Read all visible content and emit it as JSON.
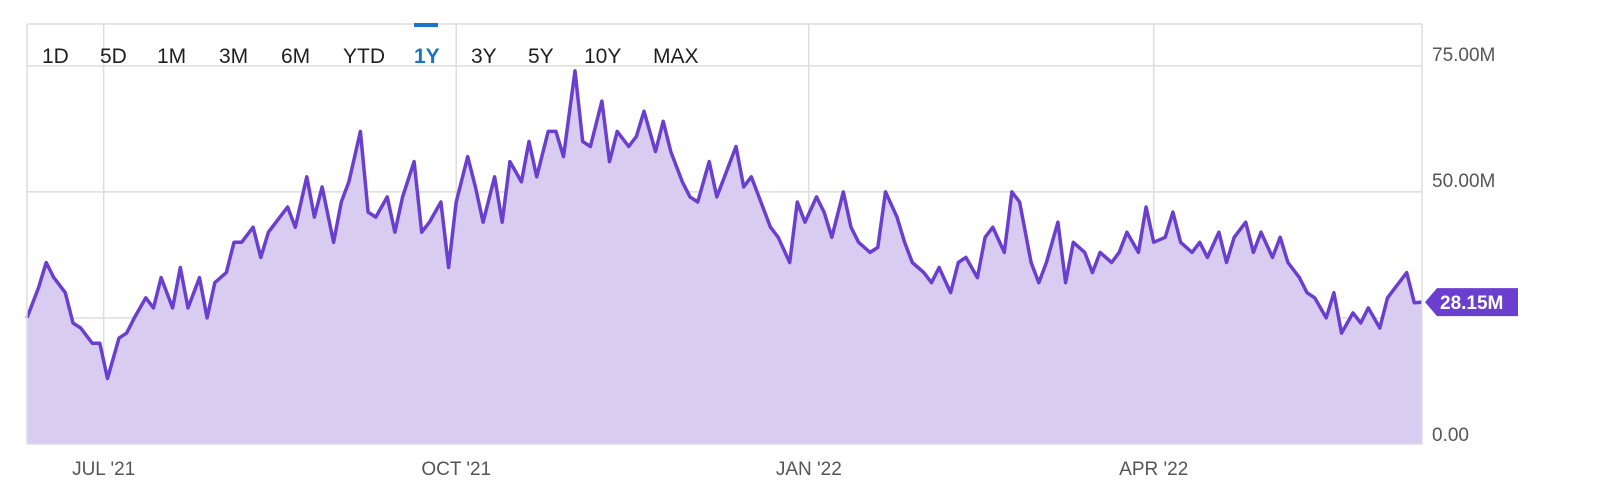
{
  "range_selector": {
    "options": [
      "1D",
      "5D",
      "1M",
      "3M",
      "6M",
      "YTD",
      "1Y",
      "3Y",
      "5Y",
      "10Y",
      "MAX"
    ],
    "selected": "1Y"
  },
  "colors": {
    "line": "#6a3fd0",
    "fill": "#d8cdf1",
    "grid": "#dddddd",
    "active": "#1a73c4",
    "badge": "#6a3fd0"
  },
  "last_value_label": "28.15M",
  "chart_data": {
    "type": "area",
    "title": "",
    "xlabel": "",
    "ylabel": "",
    "ylim": [
      0,
      100000000
    ],
    "y_ticks": [
      0,
      25000000,
      50000000,
      75000000
    ],
    "y_tick_labels": [
      "0.00",
      "",
      "50.00M",
      "75.00M"
    ],
    "x_ticks": [
      "2021-07-01",
      "2021-10-01",
      "2022-01-01",
      "2022-04-01"
    ],
    "x_tick_labels": [
      "JUL '21",
      "OCT '21",
      "JAN '22",
      "APR '22"
    ],
    "x_range": [
      "2021-06-11",
      "2022-06-10"
    ],
    "grid": true,
    "series": [
      {
        "name": "",
        "points": [
          [
            "2021-06-11",
            25
          ],
          [
            "2021-06-14",
            31
          ],
          [
            "2021-06-16",
            36
          ],
          [
            "2021-06-18",
            33
          ],
          [
            "2021-06-21",
            30
          ],
          [
            "2021-06-23",
            24
          ],
          [
            "2021-06-25",
            23
          ],
          [
            "2021-06-28",
            20
          ],
          [
            "2021-06-30",
            20
          ],
          [
            "2021-07-02",
            13
          ],
          [
            "2021-07-05",
            21
          ],
          [
            "2021-07-07",
            22
          ],
          [
            "2021-07-09",
            25
          ],
          [
            "2021-07-12",
            29
          ],
          [
            "2021-07-14",
            27
          ],
          [
            "2021-07-16",
            33
          ],
          [
            "2021-07-19",
            27
          ],
          [
            "2021-07-21",
            35
          ],
          [
            "2021-07-23",
            27
          ],
          [
            "2021-07-26",
            33
          ],
          [
            "2021-07-28",
            25
          ],
          [
            "2021-07-30",
            32
          ],
          [
            "2021-08-02",
            34
          ],
          [
            "2021-08-04",
            40
          ],
          [
            "2021-08-06",
            40
          ],
          [
            "2021-08-09",
            43
          ],
          [
            "2021-08-11",
            37
          ],
          [
            "2021-08-13",
            42
          ],
          [
            "2021-08-16",
            45
          ],
          [
            "2021-08-18",
            47
          ],
          [
            "2021-08-20",
            43
          ],
          [
            "2021-08-23",
            53
          ],
          [
            "2021-08-25",
            45
          ],
          [
            "2021-08-27",
            51
          ],
          [
            "2021-08-30",
            40
          ],
          [
            "2021-09-01",
            48
          ],
          [
            "2021-09-03",
            52
          ],
          [
            "2021-09-06",
            62
          ],
          [
            "2021-09-08",
            46
          ],
          [
            "2021-09-10",
            45
          ],
          [
            "2021-09-13",
            49
          ],
          [
            "2021-09-15",
            42
          ],
          [
            "2021-09-17",
            49
          ],
          [
            "2021-09-20",
            56
          ],
          [
            "2021-09-22",
            42
          ],
          [
            "2021-09-24",
            44
          ],
          [
            "2021-09-27",
            48
          ],
          [
            "2021-09-29",
            35
          ],
          [
            "2021-10-01",
            48
          ],
          [
            "2021-10-04",
            57
          ],
          [
            "2021-10-06",
            51
          ],
          [
            "2021-10-08",
            44
          ],
          [
            "2021-10-11",
            53
          ],
          [
            "2021-10-13",
            44
          ],
          [
            "2021-10-15",
            56
          ],
          [
            "2021-10-18",
            52
          ],
          [
            "2021-10-20",
            60
          ],
          [
            "2021-10-22",
            53
          ],
          [
            "2021-10-25",
            62
          ],
          [
            "2021-10-27",
            62
          ],
          [
            "2021-10-29",
            57
          ],
          [
            "2021-11-01",
            74
          ],
          [
            "2021-11-03",
            60
          ],
          [
            "2021-11-05",
            59
          ],
          [
            "2021-11-08",
            68
          ],
          [
            "2021-11-10",
            56
          ],
          [
            "2021-11-12",
            62
          ],
          [
            "2021-11-15",
            59
          ],
          [
            "2021-11-17",
            61
          ],
          [
            "2021-11-19",
            66
          ],
          [
            "2021-11-22",
            58
          ],
          [
            "2021-11-24",
            64
          ],
          [
            "2021-11-26",
            58
          ],
          [
            "2021-11-29",
            52
          ],
          [
            "2021-12-01",
            49
          ],
          [
            "2021-12-03",
            48
          ],
          [
            "2021-12-06",
            56
          ],
          [
            "2021-12-08",
            49
          ],
          [
            "2021-12-10",
            53
          ],
          [
            "2021-12-13",
            59
          ],
          [
            "2021-12-15",
            51
          ],
          [
            "2021-12-17",
            53
          ],
          [
            "2021-12-20",
            47
          ],
          [
            "2021-12-22",
            43
          ],
          [
            "2021-12-24",
            41
          ],
          [
            "2021-12-27",
            36
          ],
          [
            "2021-12-29",
            48
          ],
          [
            "2021-12-31",
            44
          ],
          [
            "2022-01-03",
            49
          ],
          [
            "2022-01-05",
            46
          ],
          [
            "2022-01-07",
            41
          ],
          [
            "2022-01-10",
            50
          ],
          [
            "2022-01-12",
            43
          ],
          [
            "2022-01-14",
            40
          ],
          [
            "2022-01-17",
            38
          ],
          [
            "2022-01-19",
            39
          ],
          [
            "2022-01-21",
            50
          ],
          [
            "2022-01-24",
            45
          ],
          [
            "2022-01-26",
            40
          ],
          [
            "2022-01-28",
            36
          ],
          [
            "2022-01-31",
            34
          ],
          [
            "2022-02-02",
            32
          ],
          [
            "2022-02-04",
            35
          ],
          [
            "2022-02-07",
            30
          ],
          [
            "2022-02-09",
            36
          ],
          [
            "2022-02-11",
            37
          ],
          [
            "2022-02-14",
            33
          ],
          [
            "2022-02-16",
            41
          ],
          [
            "2022-02-18",
            43
          ],
          [
            "2022-02-21",
            38
          ],
          [
            "2022-02-23",
            50
          ],
          [
            "2022-02-25",
            48
          ],
          [
            "2022-02-28",
            36
          ],
          [
            "2022-03-02",
            32
          ],
          [
            "2022-03-04",
            36
          ],
          [
            "2022-03-07",
            44
          ],
          [
            "2022-03-09",
            32
          ],
          [
            "2022-03-11",
            40
          ],
          [
            "2022-03-14",
            38
          ],
          [
            "2022-03-16",
            34
          ],
          [
            "2022-03-18",
            38
          ],
          [
            "2022-03-21",
            36
          ],
          [
            "2022-03-23",
            38
          ],
          [
            "2022-03-25",
            42
          ],
          [
            "2022-03-28",
            38
          ],
          [
            "2022-03-30",
            47
          ],
          [
            "2022-04-01",
            40
          ],
          [
            "2022-04-04",
            41
          ],
          [
            "2022-04-06",
            46
          ],
          [
            "2022-04-08",
            40
          ],
          [
            "2022-04-11",
            38
          ],
          [
            "2022-04-13",
            40
          ],
          [
            "2022-04-15",
            37
          ],
          [
            "2022-04-18",
            42
          ],
          [
            "2022-04-20",
            36
          ],
          [
            "2022-04-22",
            41
          ],
          [
            "2022-04-25",
            44
          ],
          [
            "2022-04-27",
            38
          ],
          [
            "2022-04-29",
            42
          ],
          [
            "2022-05-02",
            37
          ],
          [
            "2022-05-04",
            41
          ],
          [
            "2022-05-06",
            36
          ],
          [
            "2022-05-09",
            33
          ],
          [
            "2022-05-11",
            30
          ],
          [
            "2022-05-13",
            29
          ],
          [
            "2022-05-16",
            25
          ],
          [
            "2022-05-18",
            30
          ],
          [
            "2022-05-20",
            22
          ],
          [
            "2022-05-23",
            26
          ],
          [
            "2022-05-25",
            24
          ],
          [
            "2022-05-27",
            27
          ],
          [
            "2022-05-30",
            23
          ],
          [
            "2022-06-01",
            29
          ],
          [
            "2022-06-03",
            31
          ],
          [
            "2022-06-06",
            34
          ],
          [
            "2022-06-08",
            28
          ],
          [
            "2022-06-10",
            28.15
          ]
        ]
      }
    ]
  }
}
